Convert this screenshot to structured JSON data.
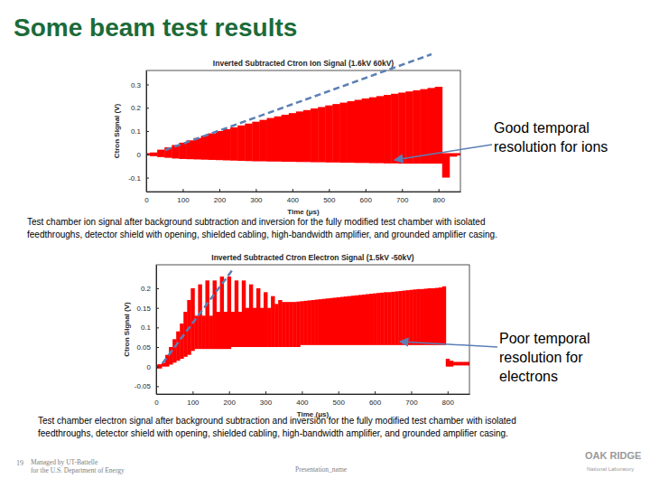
{
  "slide_title": "Some beam test results",
  "chart_data": [
    {
      "type": "area",
      "title": "Inverted Subtracted Ctron Ion Signal (1.6kV 60kV)",
      "x_label": "Time (μs)",
      "y_label": "Ctron Signal (V)",
      "x": [
        0,
        20,
        40,
        60,
        80,
        100,
        120,
        140,
        160,
        180,
        200,
        220,
        240,
        260,
        280,
        300,
        320,
        340,
        360,
        380,
        400,
        420,
        440,
        460,
        480,
        500,
        520,
        540,
        560,
        580,
        600,
        620,
        640,
        660,
        680,
        700,
        720,
        740,
        760,
        780,
        800,
        820,
        840,
        860
      ],
      "series": [
        {
          "color": "#ff0000",
          "values": [
            0.005,
            0.008,
            0.02,
            0.03,
            0.04,
            0.05,
            0.06,
            0.07,
            0.08,
            0.09,
            0.1,
            0.108,
            0.116,
            0.124,
            0.132,
            0.14,
            0.148,
            0.156,
            0.163,
            0.17,
            0.177,
            0.184,
            0.19,
            0.197,
            0.203,
            0.21,
            0.216,
            0.222,
            0.228,
            0.234,
            0.24,
            0.245,
            0.25,
            0.255,
            0.26,
            0.265,
            0.27,
            0.275,
            0.28,
            0.285,
            0.29,
            0.005,
            0.005,
            0.005
          ]
        },
        {
          "color": "#ff0000",
          "values": [
            -0.005,
            -0.008,
            -0.012,
            -0.015,
            -0.018,
            -0.02,
            -0.021,
            -0.022,
            -0.023,
            -0.024,
            -0.025,
            -0.026,
            -0.027,
            -0.028,
            -0.029,
            -0.03,
            -0.03,
            -0.031,
            -0.031,
            -0.032,
            -0.032,
            -0.033,
            -0.033,
            -0.034,
            -0.034,
            -0.035,
            -0.035,
            -0.036,
            -0.036,
            -0.037,
            -0.037,
            -0.038,
            -0.038,
            -0.039,
            -0.039,
            -0.04,
            -0.04,
            -0.04,
            -0.04,
            -0.04,
            -0.04,
            -0.1,
            -0.01,
            -0.005
          ]
        }
      ],
      "xlim": [
        0,
        860
      ],
      "ylim": [
        -0.16,
        0.36
      ],
      "xticks": [
        0,
        100,
        200,
        300,
        400,
        500,
        600,
        700,
        800
      ],
      "yticks": [
        -0.1,
        0,
        0.1,
        0.2,
        0.3
      ],
      "annotations": [
        {
          "lines": [
            "Good temporal",
            "resolution for ions"
          ]
        }
      ],
      "caption": [
        "Test chamber ion signal after background subtraction and inversion for the fully modified test chamber with isolated",
        "feedthroughs, detector shield with opening, shielded cabling, high-bandwidth amplifier, and grounded amplifier casing."
      ]
    },
    {
      "type": "area",
      "title": "Inverted Subtracted Ctron Electron Signal (1.5kV -50kV)",
      "x_label": "Time (μs)",
      "y_label": "Ctron Signal (V)",
      "x": [
        0,
        10,
        20,
        30,
        40,
        50,
        60,
        70,
        80,
        90,
        100,
        110,
        120,
        130,
        140,
        150,
        160,
        170,
        180,
        190,
        200,
        210,
        220,
        230,
        240,
        250,
        260,
        270,
        280,
        290,
        300,
        310,
        320,
        330,
        340,
        350,
        360,
        370,
        380,
        390,
        400,
        410,
        420,
        430,
        440,
        450,
        460,
        470,
        480,
        490,
        500,
        510,
        520,
        530,
        540,
        550,
        560,
        570,
        580,
        590,
        600,
        610,
        620,
        630,
        640,
        650,
        660,
        670,
        680,
        690,
        700,
        710,
        720,
        730,
        740,
        750,
        760,
        770,
        780,
        790,
        800,
        810,
        820,
        830,
        840,
        850,
        860
      ],
      "series": [
        {
          "color": "#ff0000",
          "values": [
            0.005,
            0.006,
            0.01,
            0.03,
            0.05,
            0.07,
            0.09,
            0.11,
            0.14,
            0.17,
            0.2,
            0.13,
            0.21,
            0.13,
            0.22,
            0.13,
            0.22,
            0.14,
            0.23,
            0.14,
            0.23,
            0.14,
            0.22,
            0.14,
            0.22,
            0.15,
            0.21,
            0.15,
            0.2,
            0.15,
            0.19,
            0.15,
            0.18,
            0.16,
            0.17,
            0.165,
            0.165,
            0.165,
            0.165,
            0.166,
            0.167,
            0.168,
            0.169,
            0.17,
            0.171,
            0.172,
            0.173,
            0.174,
            0.175,
            0.176,
            0.177,
            0.178,
            0.179,
            0.18,
            0.181,
            0.182,
            0.183,
            0.184,
            0.185,
            0.186,
            0.187,
            0.188,
            0.189,
            0.19,
            0.19,
            0.191,
            0.192,
            0.193,
            0.194,
            0.195,
            0.196,
            0.197,
            0.198,
            0.198,
            0.199,
            0.2,
            0.2,
            0.201,
            0.202,
            0.205,
            0.02,
            0.015,
            0.012,
            0.012,
            0.012,
            0.012,
            0.012
          ]
        },
        {
          "color": "#ff0000",
          "values": [
            -0.005,
            -0.005,
            0,
            0,
            0.005,
            0.01,
            0.015,
            0.02,
            0.025,
            0.03,
            0.04,
            0.045,
            0.045,
            0.045,
            0.045,
            0.045,
            0.045,
            0.045,
            0.045,
            0.045,
            0.045,
            0.05,
            0.05,
            0.05,
            0.05,
            0.05,
            0.05,
            0.05,
            0.05,
            0.05,
            0.05,
            0.05,
            0.05,
            0.05,
            0.05,
            0.05,
            0.05,
            0.05,
            0.05,
            0.05,
            0.055,
            0.055,
            0.055,
            0.055,
            0.055,
            0.055,
            0.055,
            0.055,
            0.055,
            0.055,
            0.055,
            0.055,
            0.055,
            0.055,
            0.055,
            0.055,
            0.055,
            0.055,
            0.055,
            0.055,
            0.055,
            0.055,
            0.055,
            0.055,
            0.055,
            0.055,
            0.055,
            0.055,
            0.055,
            0.055,
            0.055,
            0.055,
            0.055,
            0.055,
            0.055,
            0.055,
            0.055,
            0.055,
            0.055,
            0.055,
            0,
            0,
            0.003,
            0.003,
            0.003,
            0.003,
            0.003
          ]
        }
      ],
      "xlim": [
        0,
        860
      ],
      "ylim": [
        -0.07,
        0.26
      ],
      "xticks": [
        0,
        100,
        200,
        300,
        400,
        500,
        600,
        700,
        800
      ],
      "yticks": [
        -0.05,
        0,
        0.05,
        0.1,
        0.15,
        0.2
      ],
      "annotations": [
        {
          "lines": [
            "Poor temporal",
            "resolution for",
            "electrons"
          ]
        }
      ],
      "caption": [
        "Test chamber electron signal after background subtraction and inversion for the fully modified test chamber with isolated",
        "feedthroughs, detector shield with opening, shielded cabling, high-bandwidth amplifier, and grounded amplifier casing."
      ]
    }
  ],
  "footer": {
    "page": 19,
    "lines": [
      "Managed by UT-Battelle",
      "for the U.S. Department of Energy"
    ],
    "presentation": "Presentation_name",
    "logo": [
      "OAK RIDGE",
      "National Laboratory"
    ]
  }
}
